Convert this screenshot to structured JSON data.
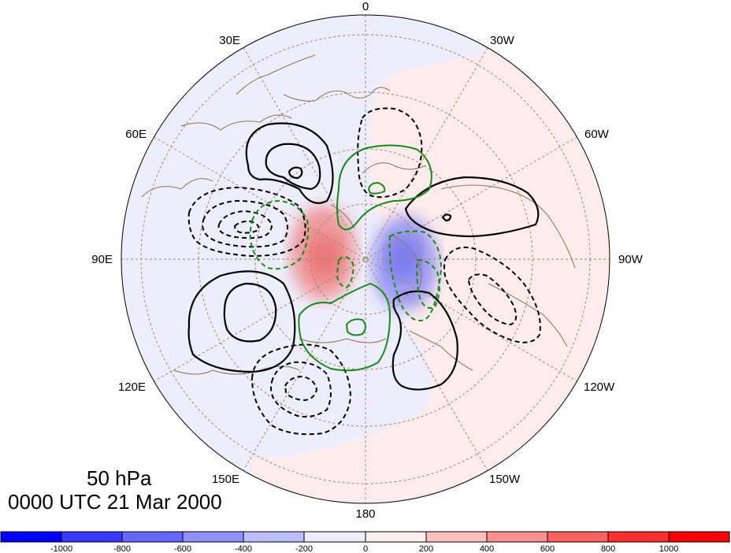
{
  "map": {
    "projection": "polar stereographic (north)",
    "level_label": "50 hPa",
    "time_label": "0000 UTC 21 Mar 2000",
    "longitude_labels": [
      "0",
      "30W",
      "60W",
      "90W",
      "120W",
      "150W",
      "180",
      "150E",
      "120E",
      "90E",
      "60E",
      "30E"
    ],
    "colors": {
      "coastline": "#8b7355",
      "gridline": "#a08560",
      "positive_contour": "#000000",
      "zero_contour": "#1a8a1a",
      "dashed_negative": "#000000"
    }
  },
  "colorbar": {
    "tick_labels": [
      "-1000",
      "-800",
      "-600",
      "-400",
      "-200",
      "0",
      "200",
      "400",
      "600",
      "800",
      "1000"
    ],
    "bin_colors": [
      "#0000ff",
      "#3a3aff",
      "#6565ff",
      "#8f8fff",
      "#bcbcff",
      "#ededff",
      "#fff0f0",
      "#ffc0c0",
      "#ff9090",
      "#ff6060",
      "#ff3030",
      "#ff0000"
    ]
  }
}
